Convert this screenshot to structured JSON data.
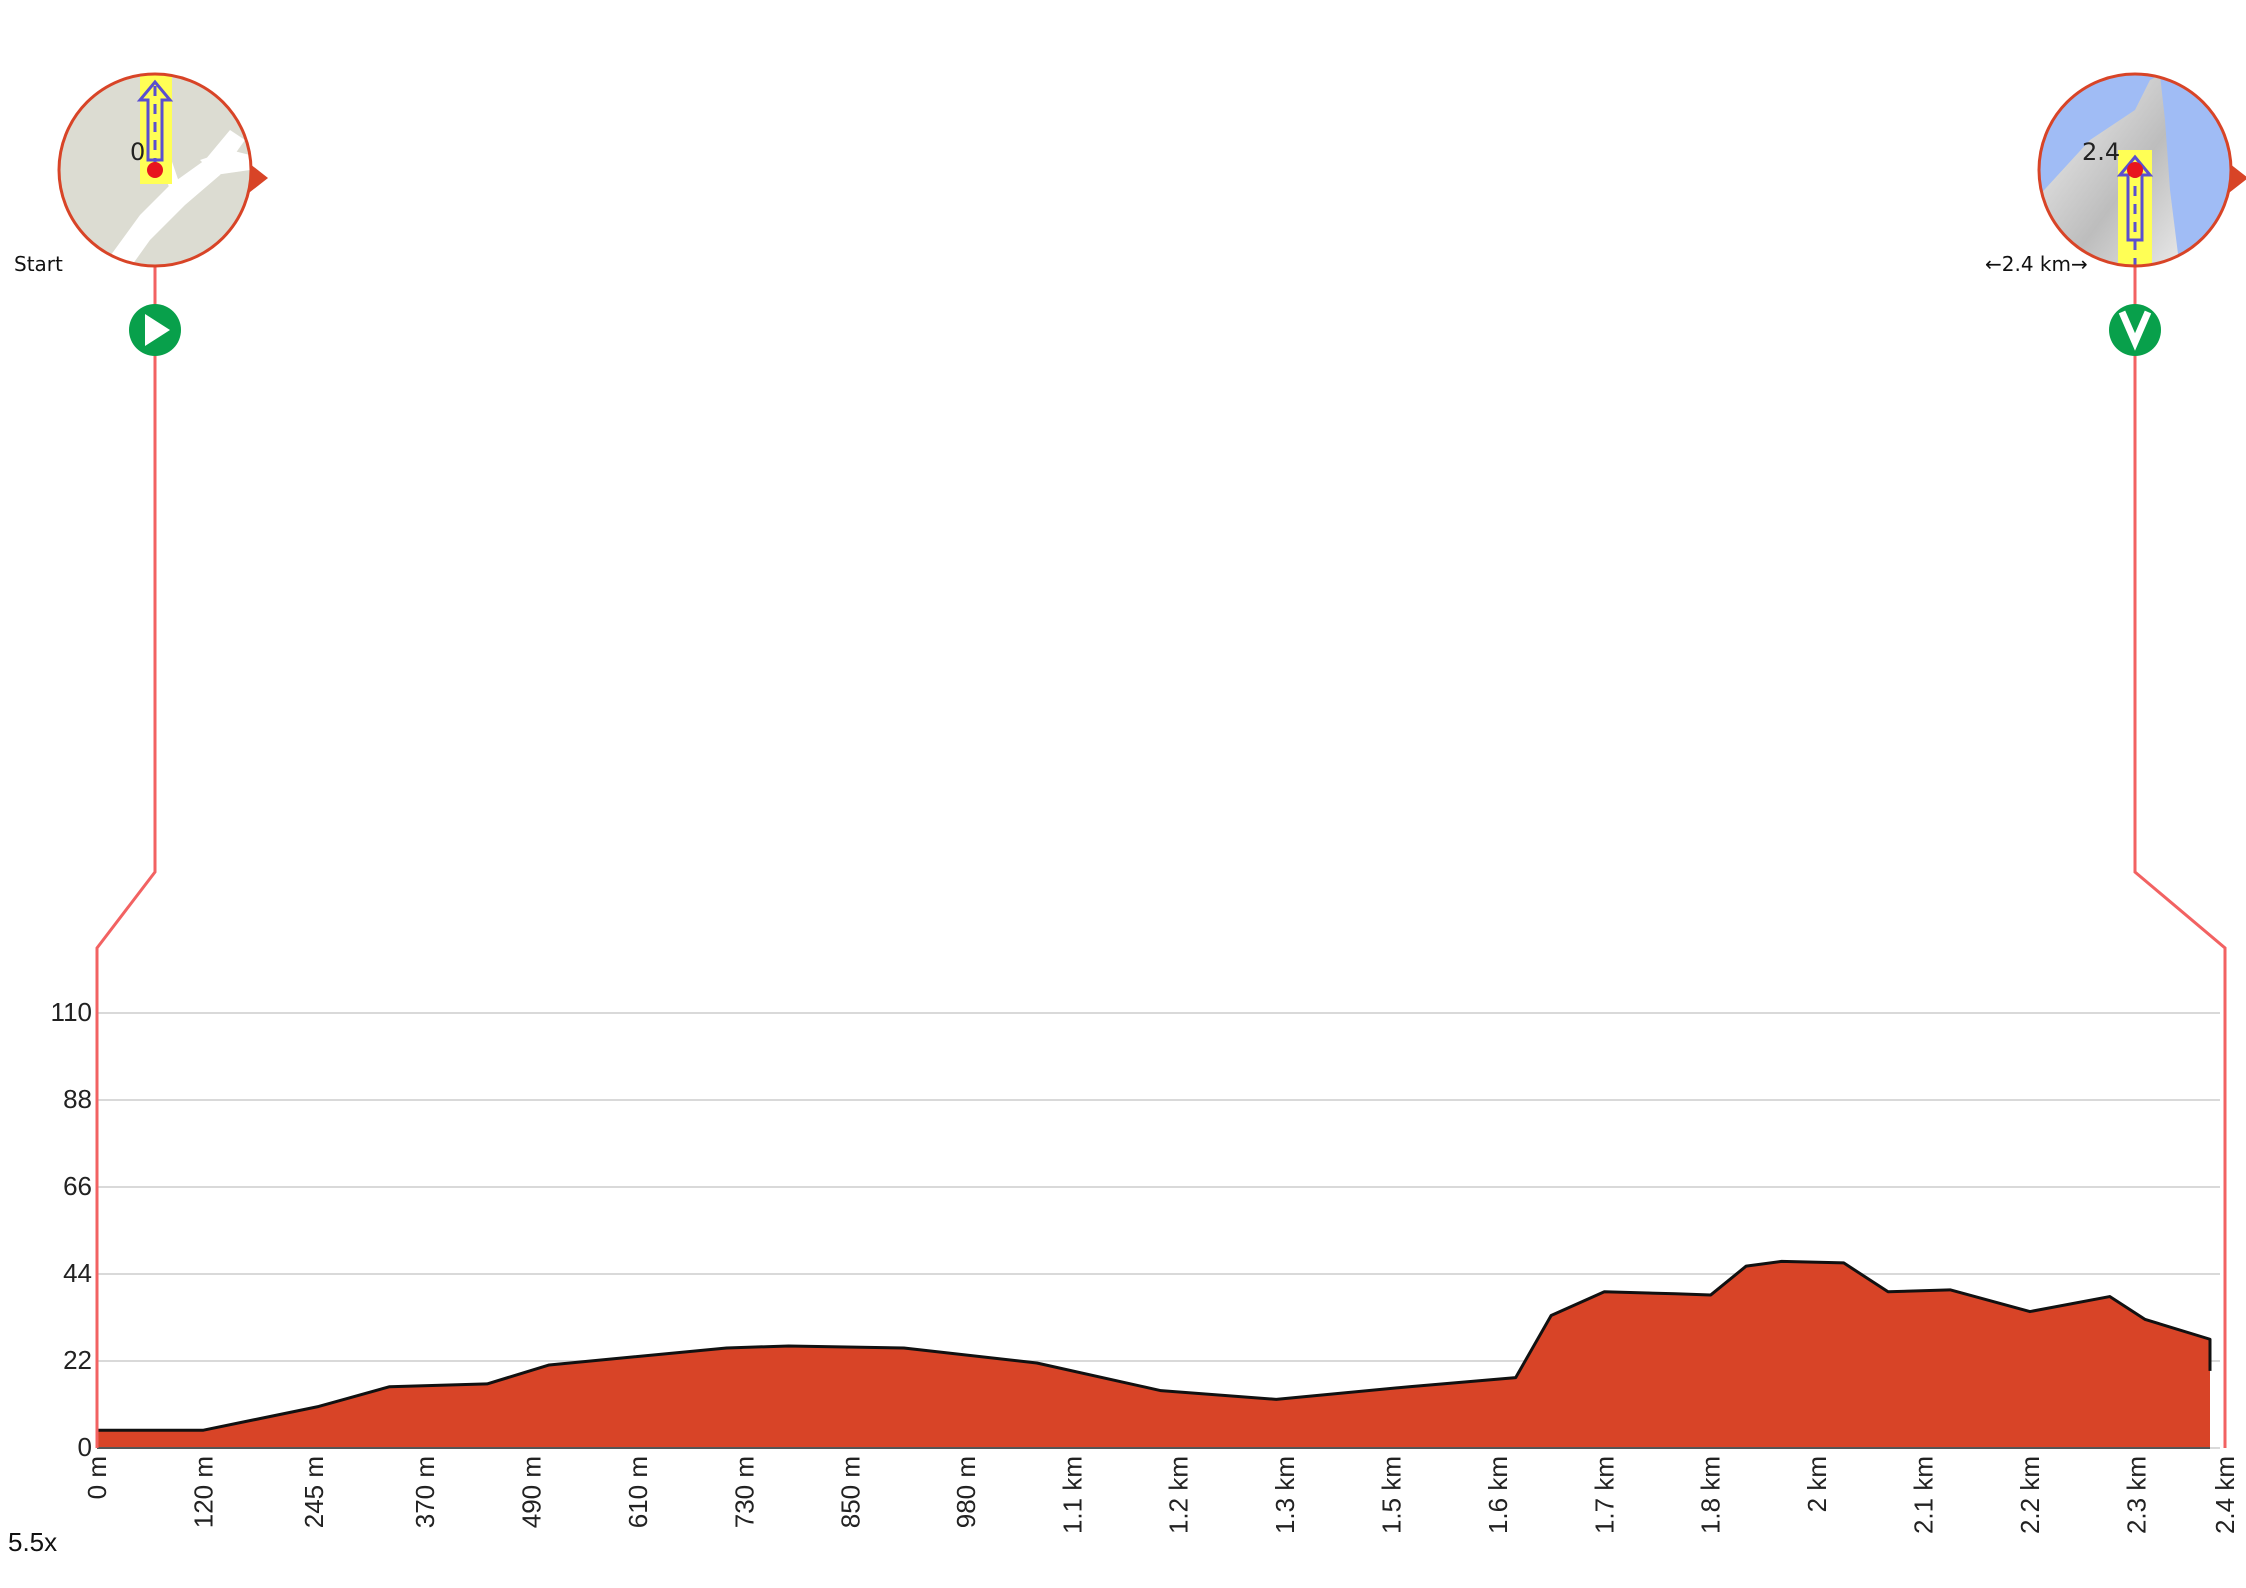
{
  "chart_data": {
    "type": "area",
    "title": "",
    "xlabel": "",
    "ylabel": "",
    "ylim": [
      0,
      110
    ],
    "xlim": [
      0,
      2.4
    ],
    "x_unit": "km",
    "y_ticks": [
      0,
      22,
      44,
      66,
      88,
      110
    ],
    "x_ticks": [
      {
        "label": "0 m",
        "value": 0
      },
      {
        "label": "120 m",
        "value": 0.12
      },
      {
        "label": "245 m",
        "value": 0.245
      },
      {
        "label": "370 m",
        "value": 0.37
      },
      {
        "label": "490 m",
        "value": 0.49
      },
      {
        "label": "610 m",
        "value": 0.61
      },
      {
        "label": "730 m",
        "value": 0.73
      },
      {
        "label": "850 m",
        "value": 0.85
      },
      {
        "label": "980 m",
        "value": 0.98
      },
      {
        "label": "1.1 km",
        "value": 1.1
      },
      {
        "label": "1.2 km",
        "value": 1.22
      },
      {
        "label": "1.3 km",
        "value": 1.34
      },
      {
        "label": "1.5 km",
        "value": 1.46
      },
      {
        "label": "1.6 km",
        "value": 1.58
      },
      {
        "label": "1.7 km",
        "value": 1.7
      },
      {
        "label": "1.8 km",
        "value": 1.82
      },
      {
        "label": "2 km",
        "value": 1.94
      },
      {
        "label": "2.1 km",
        "value": 2.06
      },
      {
        "label": "2.2 km",
        "value": 2.18
      },
      {
        "label": "2.3 km",
        "value": 2.3
      },
      {
        "label": "2.4 km",
        "value": 2.42
      }
    ],
    "grid": true,
    "fill_color": "#d84427",
    "line_color": "#111111",
    "series": [
      {
        "x": [
          0,
          0.12,
          0.25,
          0.33,
          0.44,
          0.51,
          0.58,
          0.71,
          0.78,
          0.91,
          1.06,
          1.2,
          1.33,
          1.48,
          1.6,
          1.64,
          1.7,
          1.78,
          1.82,
          1.86,
          1.9,
          1.97,
          2.02,
          2.09,
          2.18,
          2.27,
          2.31,
          2.39,
          2.45
        ],
        "y": [
          4.5,
          4.5,
          10.5,
          15.5,
          16.2,
          21,
          22.5,
          25.3,
          25.8,
          25.3,
          21.5,
          14.5,
          12.3,
          15.5,
          17.8,
          33.5,
          39.5,
          39,
          38.7,
          46,
          47.2,
          46.8,
          39.5,
          40,
          34.5,
          38.3,
          32.5,
          27.5,
          19.5
        ]
      }
    ]
  },
  "markers": {
    "start": {
      "label": "Start",
      "map_value": "0",
      "at_km": 0.065
    },
    "finish": {
      "label": "←2.4 km→",
      "map_value": "2.4",
      "at_km": 2.3
    }
  },
  "zoom": "5.5x",
  "colors": {
    "connector": "#f26262",
    "marker_green": "#08a04b",
    "route_highlight": "#ffff55",
    "route_arrow": "#5a4fd0",
    "water": "#a0bcf5",
    "land": "#dcdcd2",
    "dot": "#e8141e"
  },
  "icons": {
    "start": "play-icon",
    "finish": "finish-arrow-icon",
    "compass": "north-arrow-icon"
  }
}
